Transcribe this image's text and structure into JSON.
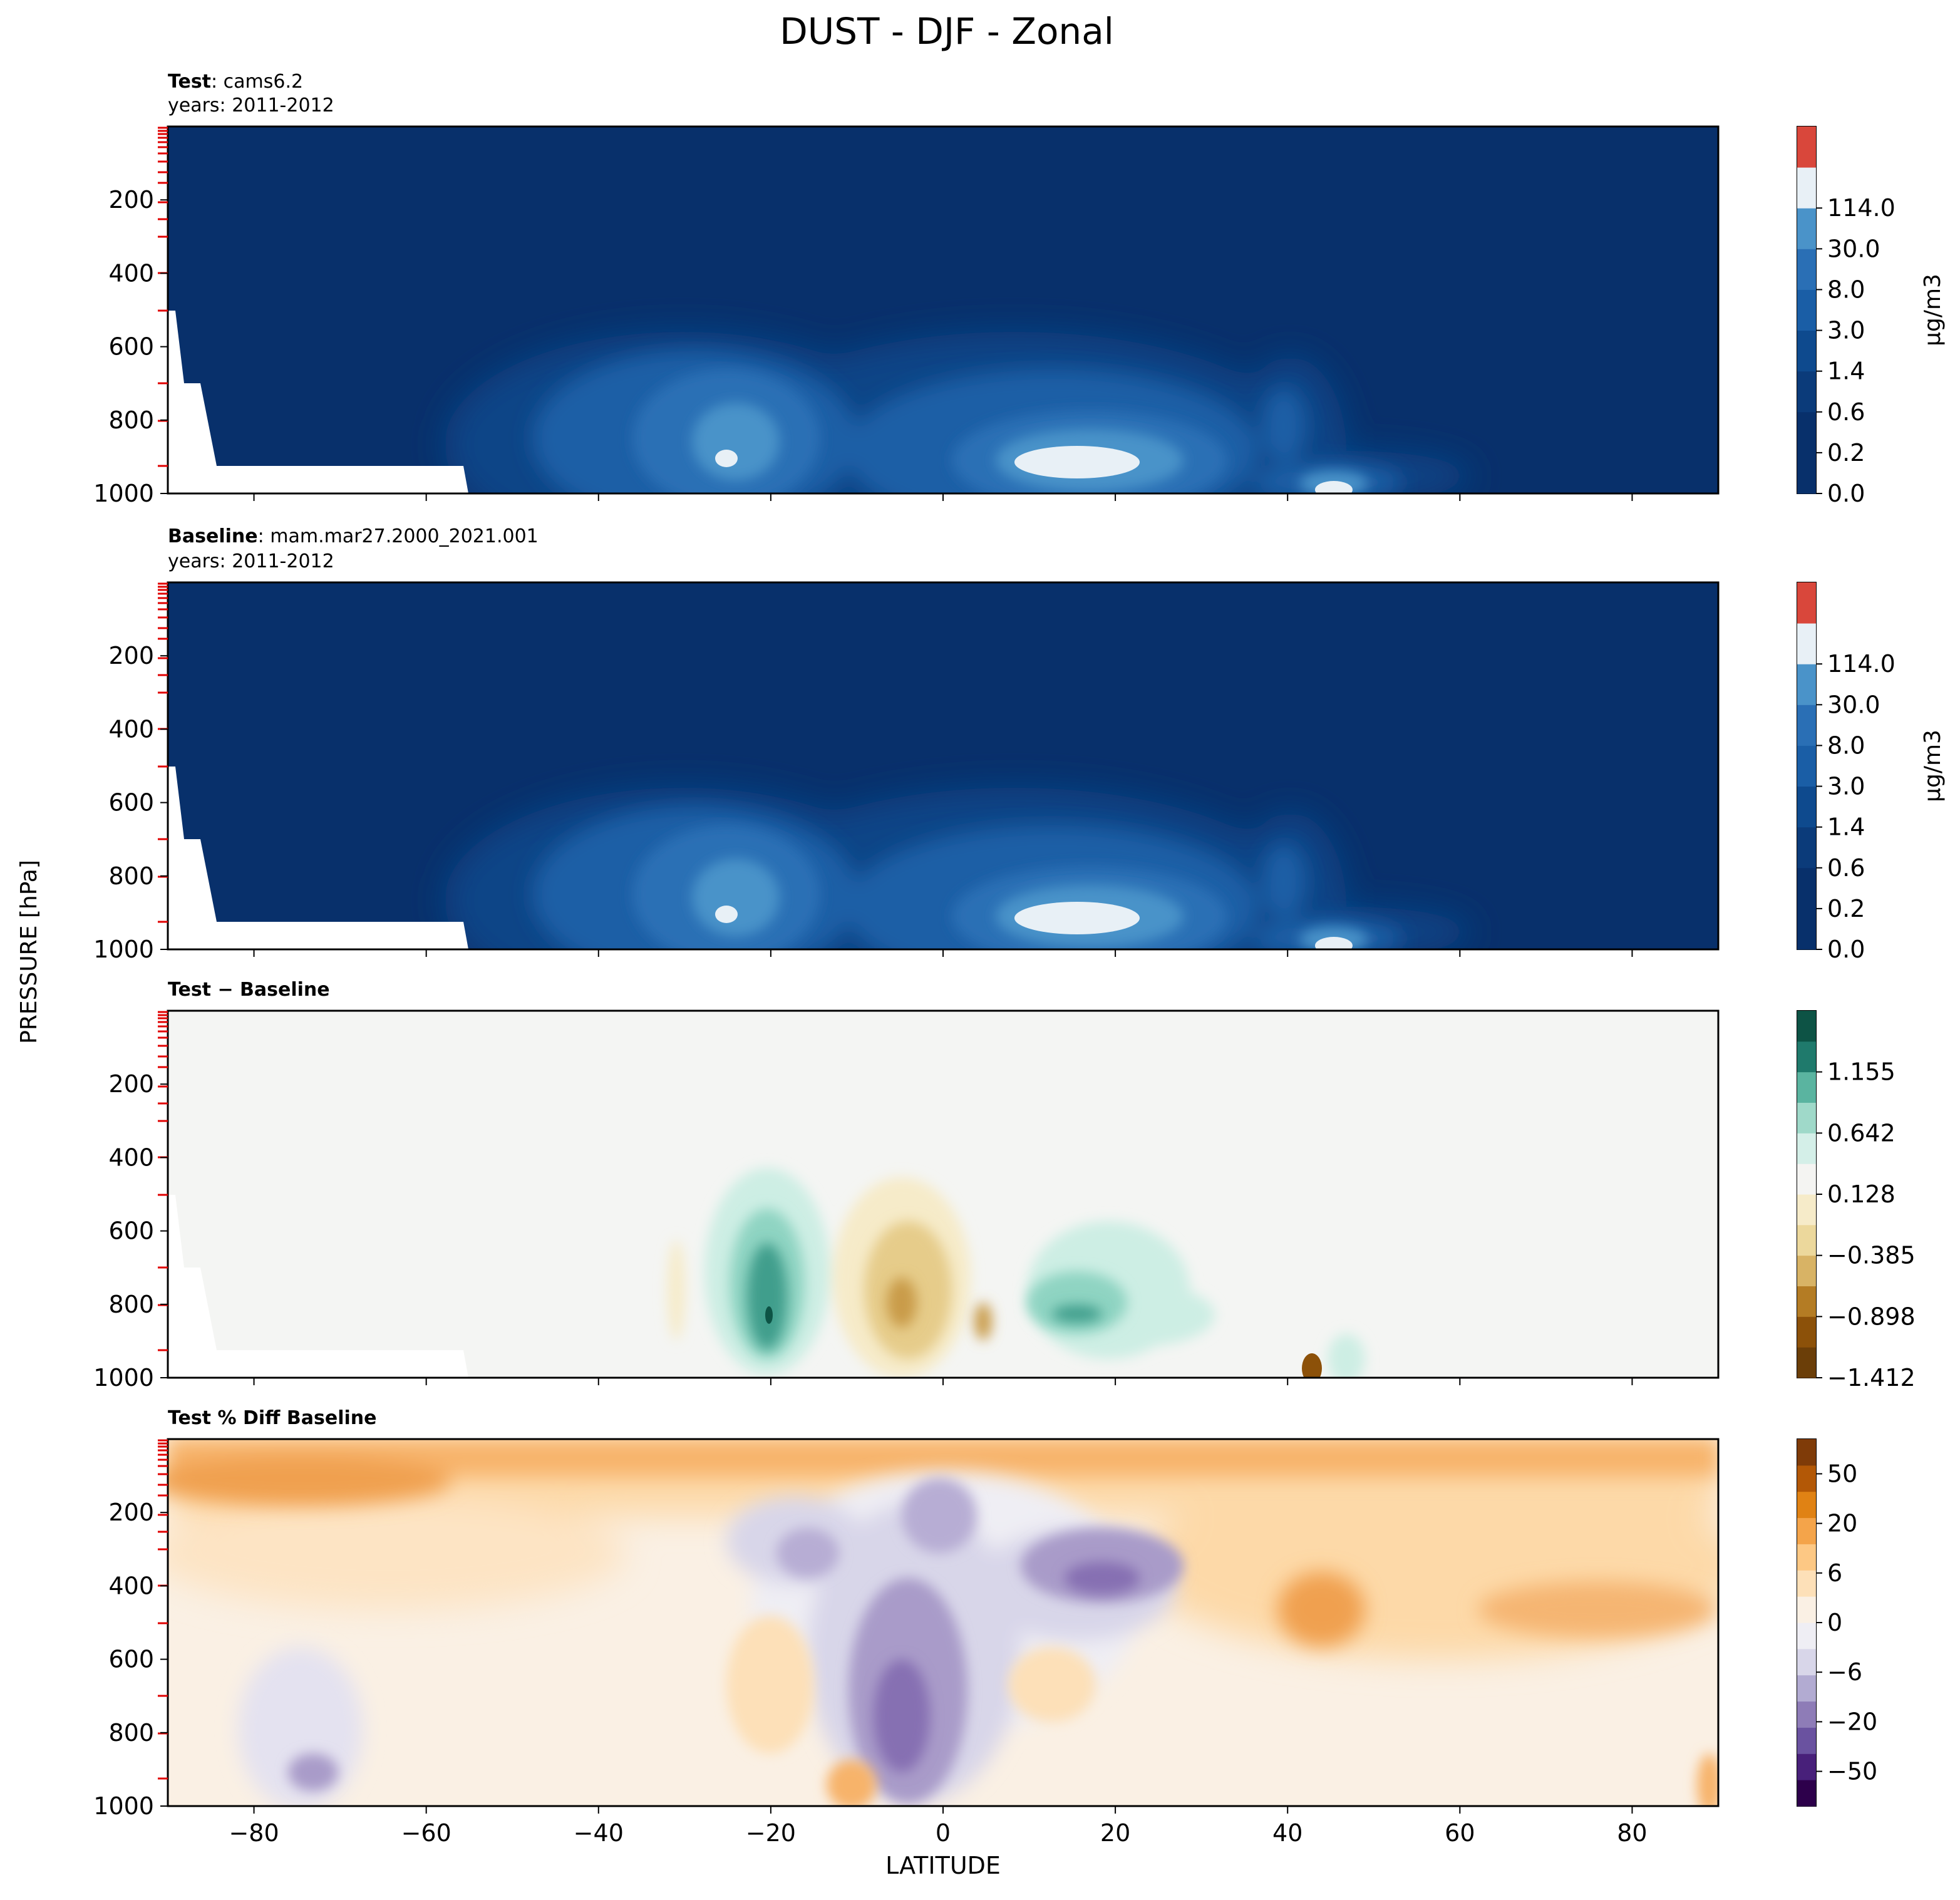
{
  "figure": {
    "title": "DUST - DJF - Zonal",
    "xlabel": "LATITUDE",
    "ylabel": "PRESSURE [hPa]",
    "xticks": [
      -80,
      -60,
      -40,
      -20,
      0,
      20,
      40,
      60,
      80
    ]
  },
  "panels": [
    {
      "title_bold": "Test",
      "title_rest": ": cams6.2",
      "subtitle": "years: 2011-2012",
      "yticks": [
        "200",
        "400",
        "600",
        "800",
        "1000"
      ],
      "cbar_ticks": [
        "114.0",
        "30.0",
        "8.0",
        "3.0",
        "1.4",
        "0.6",
        "0.2",
        "0.0"
      ],
      "cbar_label": "μg/m3",
      "palette": [
        "#08306b",
        "#08306b",
        "#0b3b7a",
        "#0e4a8e",
        "#1a5ea6",
        "#2a6fb5",
        "#4a93c9",
        "#e8f0f6",
        "#d9473b"
      ]
    },
    {
      "title_bold": "Baseline",
      "title_rest": ": mam.mar27.2000_2021.001",
      "subtitle": "years: 2011-2012",
      "yticks": [
        "200",
        "400",
        "600",
        "800",
        "1000"
      ],
      "cbar_ticks": [
        "114.0",
        "30.0",
        "8.0",
        "3.0",
        "1.4",
        "0.6",
        "0.2",
        "0.0"
      ],
      "cbar_label": "μg/m3",
      "palette": [
        "#08306b",
        "#08306b",
        "#0b3b7a",
        "#0e4a8e",
        "#1a5ea6",
        "#2a6fb5",
        "#4a93c9",
        "#e8f0f6",
        "#d9473b"
      ]
    },
    {
      "title_bold": "Test − Baseline",
      "title_rest": "",
      "subtitle": "",
      "yticks": [
        "200",
        "400",
        "600",
        "800",
        "1000"
      ],
      "cbar_ticks": [
        "1.155",
        "0.642",
        "0.128",
        "−0.385",
        "−0.898",
        "−1.412"
      ],
      "cbar_label": "",
      "palette": [
        "#6b3e08",
        "#8c5109",
        "#b47c24",
        "#d8b365",
        "#ecd89c",
        "#f6ebc9",
        "#f4f4f2",
        "#d4efe8",
        "#9fd9c9",
        "#5ab4a0",
        "#1f7a6c",
        "#0d5345"
      ]
    },
    {
      "title_bold": "Test % Diff Baseline",
      "title_rest": "",
      "subtitle": "",
      "yticks": [
        "200",
        "400",
        "600",
        "800",
        "1000"
      ],
      "cbar_ticks": [
        "50",
        "20",
        "6",
        "0",
        "−6",
        "−20",
        "−50"
      ],
      "cbar_label": "",
      "palette": [
        "#2d004b",
        "#48207a",
        "#6a52a0",
        "#8e7cb7",
        "#b2abd2",
        "#d8d6e9",
        "#efeef4",
        "#faf0e4",
        "#fde0b8",
        "#fdc884",
        "#f4a44a",
        "#e08214",
        "#b35806",
        "#7f3b08"
      ]
    }
  ],
  "chart_data": [
    {
      "type": "heatmap",
      "title": "Test: cams6.2",
      "subtitle": "years: 2011-2012",
      "xlabel": "LATITUDE",
      "ylabel": "PRESSURE [hPa]",
      "xlim": [
        -90,
        90
      ],
      "ylim": [
        1000,
        0
      ],
      "colorbar_label": "μg/m3",
      "colorbar_levels": [
        0.0,
        0.2,
        0.6,
        1.4,
        3.0,
        8.0,
        30.0,
        114.0
      ],
      "features": [
        {
          "lat": -25,
          "p": 900,
          "value": 114.0
        },
        {
          "lat": 17,
          "p": 910,
          "value": 114.0
        },
        {
          "lat": 45,
          "p": 980,
          "value": 114.0
        },
        {
          "lat": -22,
          "p": 820,
          "value": 30.0
        },
        {
          "lat": 13,
          "p": 880,
          "value": 30.0
        }
      ]
    },
    {
      "type": "heatmap",
      "title": "Baseline: mam.mar27.2000_2021.001",
      "subtitle": "years: 2011-2012",
      "xlabel": "LATITUDE",
      "ylabel": "PRESSURE [hPa]",
      "xlim": [
        -90,
        90
      ],
      "ylim": [
        1000,
        0
      ],
      "colorbar_label": "μg/m3",
      "colorbar_levels": [
        0.0,
        0.2,
        0.6,
        1.4,
        3.0,
        8.0,
        30.0,
        114.0
      ],
      "features": [
        {
          "lat": -25,
          "p": 900,
          "value": 114.0
        },
        {
          "lat": 17,
          "p": 910,
          "value": 114.0
        },
        {
          "lat": 45,
          "p": 980,
          "value": 114.0
        }
      ]
    },
    {
      "type": "heatmap",
      "title": "Test − Baseline",
      "xlabel": "LATITUDE",
      "ylabel": "PRESSURE [hPa]",
      "xlim": [
        -90,
        90
      ],
      "ylim": [
        1000,
        0
      ],
      "colorbar_levels": [
        -1.412,
        -0.898,
        -0.385,
        0.128,
        0.642,
        1.155
      ],
      "features": [
        {
          "lat": -20,
          "p": 820,
          "value": 1.155
        },
        {
          "lat": -3,
          "p": 800,
          "value": -0.898
        },
        {
          "lat": 15,
          "p": 840,
          "value": 0.642
        },
        {
          "lat": 43,
          "p": 980,
          "value": -1.412
        }
      ]
    },
    {
      "type": "heatmap",
      "title": "Test % Diff Baseline",
      "xlabel": "LATITUDE",
      "ylabel": "PRESSURE [hPa]",
      "xlim": [
        -90,
        90
      ],
      "ylim": [
        1000,
        0
      ],
      "colorbar_levels": [
        -50,
        -20,
        -6,
        0,
        6,
        20,
        50
      ],
      "features": [
        {
          "lat": -75,
          "p": 100,
          "value": 20
        },
        {
          "lat": -3,
          "p": 600,
          "value": -20
        },
        {
          "lat": 18,
          "p": 330,
          "value": -20
        },
        {
          "lat": 43,
          "p": 300,
          "value": 20
        },
        {
          "lat": 80,
          "p": 300,
          "value": 10
        }
      ]
    }
  ]
}
